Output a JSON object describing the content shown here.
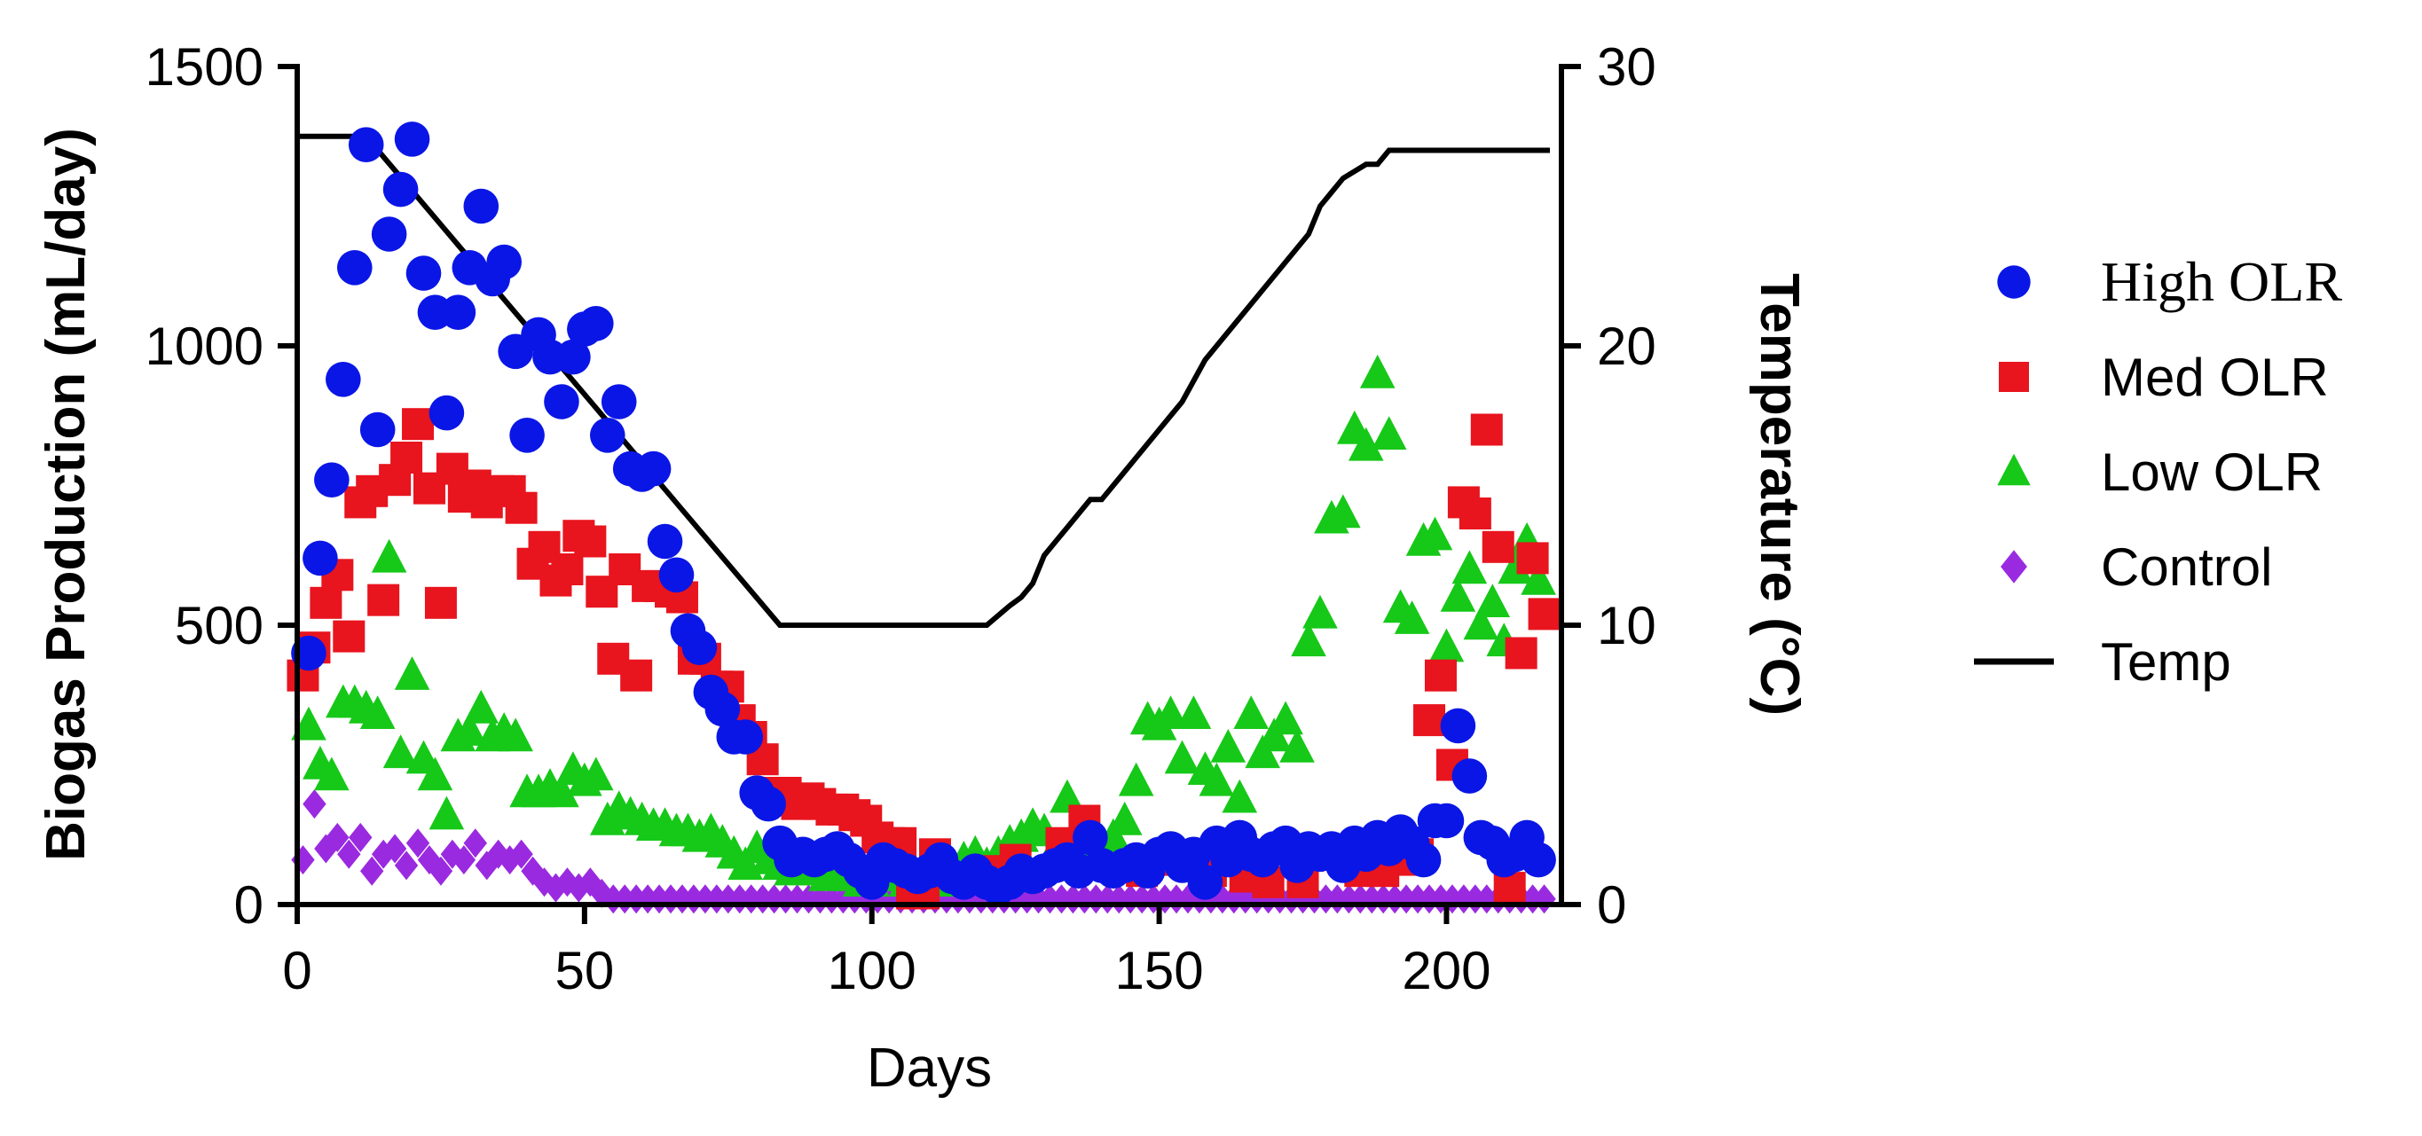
{
  "chart_data": {
    "type": "scatter",
    "title": "",
    "xlabel": "Days",
    "ylabel": "Biogas Production (mL/day)",
    "y2label": "Temperature (°C)",
    "xlim": [
      0,
      220
    ],
    "ylim": [
      0,
      1500
    ],
    "y2lim": [
      0,
      30
    ],
    "x_ticks": [
      "0",
      "50",
      "100",
      "150",
      "200"
    ],
    "y_ticks": [
      "0",
      "500",
      "1000",
      "1500"
    ],
    "y2_ticks": [
      "0",
      "10",
      "20",
      "30"
    ],
    "legend_position": "right",
    "series": [
      {
        "name": "High OLR",
        "marker": "circle",
        "color": "#0a16e6",
        "x": [
          2,
          4,
          6,
          8,
          10,
          12,
          14,
          16,
          18,
          20,
          22,
          24,
          26,
          28,
          30,
          32,
          34,
          36,
          38,
          40,
          42,
          44,
          46,
          48,
          50,
          52,
          54,
          56,
          58,
          60,
          62,
          64,
          66,
          68,
          70,
          72,
          74,
          76,
          78,
          80,
          82,
          84,
          86,
          88,
          90,
          92,
          94,
          96,
          98,
          100,
          102,
          104,
          106,
          108,
          110,
          112,
          114,
          116,
          118,
          120,
          122,
          124,
          126,
          128,
          130,
          132,
          134,
          136,
          138,
          140,
          142,
          144,
          146,
          148,
          150,
          152,
          154,
          156,
          158,
          160,
          162,
          164,
          166,
          168,
          170,
          172,
          174,
          176,
          178,
          180,
          182,
          184,
          186,
          188,
          190,
          192,
          194,
          196,
          198,
          200,
          202,
          204,
          206,
          208,
          210,
          212,
          214,
          216
        ],
        "y": [
          450,
          620,
          760,
          940,
          1140,
          1360,
          850,
          1200,
          1280,
          1370,
          1130,
          1060,
          880,
          1060,
          1140,
          1250,
          1120,
          1150,
          990,
          840,
          1020,
          980,
          900,
          980,
          1030,
          1040,
          840,
          900,
          780,
          770,
          780,
          650,
          590,
          490,
          460,
          380,
          350,
          300,
          300,
          200,
          180,
          110,
          80,
          90,
          80,
          90,
          100,
          80,
          60,
          40,
          80,
          70,
          60,
          50,
          60,
          80,
          50,
          40,
          60,
          40,
          30,
          40,
          60,
          50,
          60,
          70,
          80,
          60,
          120,
          70,
          60,
          70,
          80,
          60,
          90,
          100,
          70,
          90,
          40,
          110,
          80,
          120,
          90,
          80,
          100,
          110,
          70,
          100,
          90,
          100,
          70,
          110,
          90,
          120,
          100,
          130,
          110,
          80,
          150,
          150,
          320,
          230,
          120,
          110,
          80,
          90,
          120,
          80
        ]
      },
      {
        "name": "Med OLR",
        "marker": "square",
        "color": "#e8141e",
        "x": [
          1,
          3,
          5,
          7,
          9,
          11,
          13,
          15,
          17,
          19,
          21,
          23,
          25,
          27,
          29,
          31,
          33,
          35,
          37,
          39,
          41,
          43,
          45,
          47,
          49,
          51,
          53,
          55,
          57,
          59,
          61,
          63,
          65,
          67,
          69,
          71,
          73,
          75,
          77,
          79,
          81,
          83,
          85,
          87,
          89,
          91,
          93,
          95,
          97,
          99,
          101,
          103,
          105,
          107,
          109,
          111,
          121,
          125,
          133,
          137,
          147,
          153,
          159,
          165,
          169,
          175,
          185,
          189,
          193,
          195,
          197,
          199,
          201,
          203,
          205,
          207,
          209,
          211,
          213,
          215,
          217
        ],
        "y": [
          410,
          460,
          540,
          590,
          480,
          720,
          740,
          545,
          760,
          800,
          860,
          745,
          540,
          780,
          730,
          750,
          720,
          740,
          740,
          710,
          610,
          640,
          580,
          600,
          660,
          650,
          560,
          440,
          600,
          410,
          570,
          570,
          560,
          550,
          440,
          440,
          390,
          390,
          330,
          300,
          260,
          200,
          200,
          180,
          190,
          180,
          170,
          170,
          160,
          150,
          120,
          110,
          110,
          20,
          20,
          90,
          60,
          80,
          110,
          150,
          60,
          80,
          60,
          50,
          40,
          40,
          60,
          60,
          80,
          90,
          330,
          410,
          250,
          720,
          700,
          850,
          640,
          30,
          450,
          620,
          520
        ]
      },
      {
        "name": "Low OLR",
        "marker": "triangle",
        "color": "#16c818",
        "x": [
          2,
          4,
          6,
          8,
          10,
          12,
          14,
          16,
          18,
          20,
          22,
          24,
          26,
          28,
          30,
          32,
          34,
          36,
          38,
          40,
          42,
          44,
          46,
          48,
          50,
          52,
          54,
          56,
          58,
          60,
          62,
          64,
          66,
          68,
          70,
          72,
          74,
          76,
          78,
          80,
          82,
          84,
          86,
          88,
          90,
          92,
          94,
          96,
          98,
          100,
          102,
          104,
          106,
          108,
          110,
          112,
          114,
          116,
          118,
          120,
          122,
          124,
          126,
          128,
          130,
          132,
          134,
          136,
          138,
          140,
          142,
          144,
          146,
          148,
          150,
          152,
          154,
          156,
          158,
          160,
          162,
          164,
          166,
          168,
          170,
          172,
          174,
          176,
          178,
          180,
          182,
          184,
          186,
          188,
          190,
          192,
          194,
          196,
          198,
          200,
          202,
          204,
          206,
          208,
          210,
          212,
          214,
          216
        ],
        "y": [
          320,
          250,
          230,
          360,
          360,
          350,
          340,
          620,
          270,
          410,
          260,
          230,
          160,
          300,
          310,
          350,
          300,
          310,
          300,
          200,
          200,
          210,
          200,
          240,
          220,
          230,
          150,
          170,
          160,
          150,
          140,
          140,
          130,
          130,
          120,
          130,
          110,
          90,
          70,
          100,
          80,
          70,
          60,
          70,
          60,
          50,
          60,
          50,
          40,
          40,
          50,
          50,
          40,
          40,
          50,
          40,
          60,
          80,
          90,
          70,
          90,
          110,
          120,
          140,
          130,
          100,
          190,
          70,
          90,
          110,
          120,
          150,
          220,
          330,
          320,
          340,
          260,
          340,
          240,
          220,
          280,
          190,
          340,
          270,
          300,
          330,
          280,
          470,
          520,
          690,
          700,
          850,
          820,
          950,
          840,
          530,
          510,
          650,
          660,
          460,
          550,
          600,
          500,
          540,
          470,
          600,
          650,
          580
        ]
      },
      {
        "name": "Control",
        "marker": "diamond",
        "color": "#9a2ae0",
        "x": [
          1,
          3,
          5,
          7,
          9,
          11,
          13,
          15,
          17,
          19,
          21,
          23,
          25,
          27,
          29,
          31,
          33,
          35,
          37,
          39,
          41,
          43,
          45,
          47,
          49,
          51,
          53,
          55,
          57,
          59,
          61,
          63,
          65,
          67,
          69,
          71,
          73,
          75,
          77,
          79,
          81,
          83,
          85,
          87,
          89,
          91,
          93,
          95,
          97,
          99,
          101,
          103,
          105,
          107,
          109,
          111,
          113,
          115,
          117,
          119,
          121,
          123,
          125,
          127,
          129,
          131,
          133,
          135,
          137,
          139,
          141,
          143,
          145,
          147,
          149,
          151,
          153,
          155,
          157,
          159,
          161,
          163,
          165,
          167,
          169,
          171,
          173,
          175,
          177,
          179,
          181,
          183,
          185,
          187,
          189,
          191,
          193,
          195,
          197,
          199,
          201,
          203,
          205,
          207,
          209,
          211,
          213,
          215,
          217
        ],
        "y": [
          80,
          180,
          100,
          120,
          90,
          120,
          60,
          90,
          100,
          70,
          110,
          80,
          60,
          90,
          80,
          110,
          70,
          90,
          80,
          90,
          60,
          40,
          30,
          40,
          30,
          40,
          20,
          10,
          10,
          10,
          10,
          10,
          10,
          10,
          10,
          10,
          10,
          10,
          10,
          10,
          10,
          10,
          10,
          10,
          10,
          10,
          10,
          10,
          10,
          10,
          10,
          10,
          10,
          10,
          10,
          10,
          10,
          10,
          10,
          10,
          10,
          10,
          10,
          10,
          10,
          10,
          10,
          10,
          10,
          10,
          10,
          10,
          10,
          10,
          10,
          10,
          10,
          10,
          10,
          10,
          10,
          10,
          10,
          10,
          10,
          10,
          10,
          10,
          10,
          10,
          10,
          10,
          10,
          10,
          10,
          10,
          10,
          10,
          10,
          10,
          10,
          10,
          10,
          10,
          10,
          10,
          10,
          10,
          10
        ]
      },
      {
        "name": "Temp",
        "marker": "line",
        "color": "#000000",
        "axis": "right",
        "x": [
          0,
          12,
          84,
          120,
          124,
          126,
          128,
          130,
          132,
          134,
          138,
          140,
          144,
          146,
          150,
          152,
          154,
          158,
          162,
          168,
          172,
          176,
          178,
          180,
          182,
          186,
          188,
          190,
          192,
          218
        ],
        "y": [
          27.5,
          27.5,
          10,
          10,
          10.7,
          11,
          11.5,
          12.5,
          13,
          13.5,
          14.5,
          14.5,
          15.5,
          16,
          17,
          17.5,
          18,
          19.5,
          20.5,
          22,
          23,
          24,
          25,
          25.5,
          26,
          26.5,
          26.5,
          27,
          27,
          27
        ]
      }
    ]
  }
}
